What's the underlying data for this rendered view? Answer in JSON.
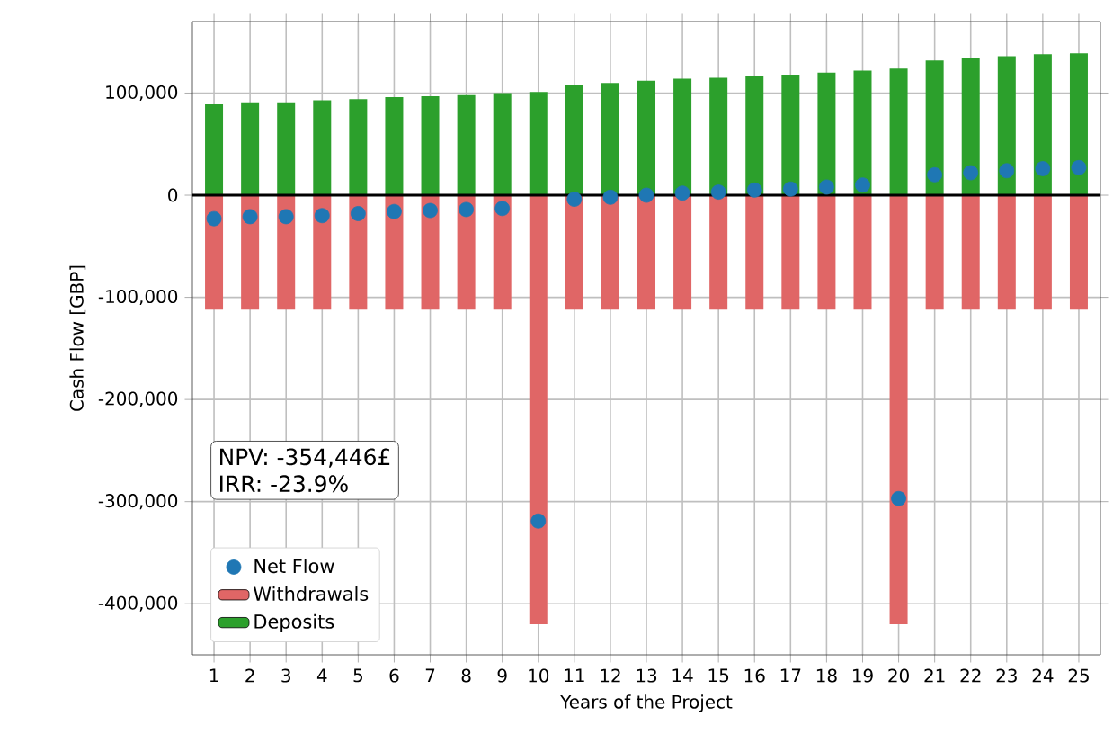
{
  "chart_data": {
    "type": "bar",
    "xlabel": "Years of the Project",
    "ylabel": "Cash Flow [GBP]",
    "categories": [
      "1",
      "2",
      "3",
      "4",
      "5",
      "6",
      "7",
      "8",
      "9",
      "10",
      "11",
      "12",
      "13",
      "14",
      "15",
      "16",
      "17",
      "18",
      "19",
      "20",
      "21",
      "22",
      "23",
      "24",
      "25"
    ],
    "series": [
      {
        "name": "Net Flow",
        "type": "scatter",
        "color": "#1f77b4",
        "values": [
          -23000,
          -21000,
          -21000,
          -20000,
          -18000,
          -16000,
          -15000,
          -14000,
          -13000,
          -319000,
          -4000,
          -2000,
          0,
          2000,
          3000,
          5000,
          6000,
          8000,
          10000,
          -297000,
          20000,
          22000,
          24000,
          26000,
          27000
        ]
      },
      {
        "name": "Withdrawals",
        "color": "#e06666",
        "values": [
          -112000,
          -112000,
          -112000,
          -112000,
          -112000,
          -112000,
          -112000,
          -112000,
          -112000,
          -420000,
          -112000,
          -112000,
          -112000,
          -112000,
          -112000,
          -112000,
          -112000,
          -112000,
          -112000,
          -420000,
          -112000,
          -112000,
          -112000,
          -112000,
          -112000
        ]
      },
      {
        "name": "Deposits",
        "color": "#2ca02c",
        "values": [
          89000,
          91000,
          91000,
          93000,
          94000,
          96000,
          97000,
          98000,
          100000,
          101000,
          108000,
          110000,
          112000,
          114000,
          115000,
          117000,
          118000,
          120000,
          122000,
          124000,
          132000,
          134000,
          136000,
          138000,
          139000
        ]
      }
    ],
    "ylim": [
      -450000,
      170000
    ],
    "yticks": [
      {
        "value": -400000,
        "label": "-400,000"
      },
      {
        "value": -300000,
        "label": "-300,000"
      },
      {
        "value": -200000,
        "label": "-200,000"
      },
      {
        "value": -100000,
        "label": "-100,000"
      },
      0,
      {
        "value": 100000,
        "label": "100,000"
      }
    ],
    "ref_lines": [
      {
        "axis": "y",
        "value": 0,
        "color": "#000000"
      }
    ],
    "annotations": [
      "NPV: -354,446£",
      "IRR: -23.9%"
    ],
    "grid": true,
    "legend": "bottom left",
    "stacked": true
  }
}
